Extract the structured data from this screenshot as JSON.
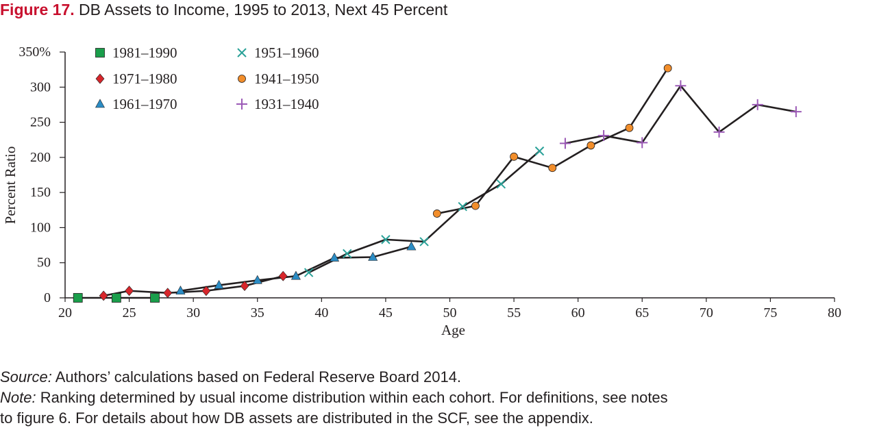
{
  "figure": {
    "label": "Figure 17.",
    "title": "DB Assets to Income, 1995 to 2013, Next 45 Percent"
  },
  "footer": {
    "source_label": "Source:",
    "source_text": "Authors’ calculations based on Federal Reserve Board 2014.",
    "note_label": "Note:",
    "note_text_1": "Ranking determined by usual income distribution within each cohort. For definitions, see notes",
    "note_text_2": "to figure 6. For details about how DB assets are distributed in the SCF, see the appendix."
  },
  "chart_data": {
    "type": "line",
    "xlabel": "Age",
    "ylabel": "Percent Ratio",
    "xlim": [
      20,
      80
    ],
    "ylim": [
      0,
      350
    ],
    "x_ticks": [
      20,
      25,
      30,
      35,
      40,
      45,
      50,
      55,
      60,
      65,
      70,
      75,
      80
    ],
    "y_ticks": [
      0,
      50,
      100,
      150,
      200,
      250,
      300,
      350
    ],
    "y_tick_labels": [
      "0",
      "50",
      "100",
      "150",
      "200",
      "250",
      "300",
      "350%"
    ],
    "grid": false,
    "legend_position": "top-left",
    "series": [
      {
        "name": "1981–1990",
        "marker": "square",
        "color": "#1a9e4b",
        "x": [
          21,
          24,
          27
        ],
        "y": [
          0,
          0,
          0
        ]
      },
      {
        "name": "1971–1980",
        "marker": "diamond",
        "color": "#d7262b",
        "x": [
          23,
          25,
          28,
          31,
          34,
          37
        ],
        "y": [
          3,
          10,
          7,
          10,
          17,
          31
        ]
      },
      {
        "name": "1961–1970",
        "marker": "triangle",
        "color": "#2b8cc4",
        "x": [
          29,
          32,
          35,
          38,
          41,
          44,
          47
        ],
        "y": [
          10,
          18,
          25,
          31,
          57,
          58,
          73
        ]
      },
      {
        "name": "1951–1960",
        "marker": "x",
        "color": "#2aa198",
        "x": [
          39,
          42,
          45,
          48,
          51,
          54,
          57
        ],
        "y": [
          36,
          63,
          83,
          80,
          130,
          162,
          209
        ]
      },
      {
        "name": "1941–1950",
        "marker": "circle",
        "color": "#f28e2b",
        "x": [
          49,
          52,
          55,
          58,
          61,
          64,
          67
        ],
        "y": [
          120,
          131,
          201,
          185,
          217,
          242,
          327
        ]
      },
      {
        "name": "1931–1940",
        "marker": "plus",
        "color": "#9b59b6",
        "x": [
          59,
          62,
          65,
          68,
          71,
          74,
          77
        ],
        "y": [
          220,
          231,
          221,
          302,
          236,
          275,
          265
        ]
      }
    ]
  }
}
